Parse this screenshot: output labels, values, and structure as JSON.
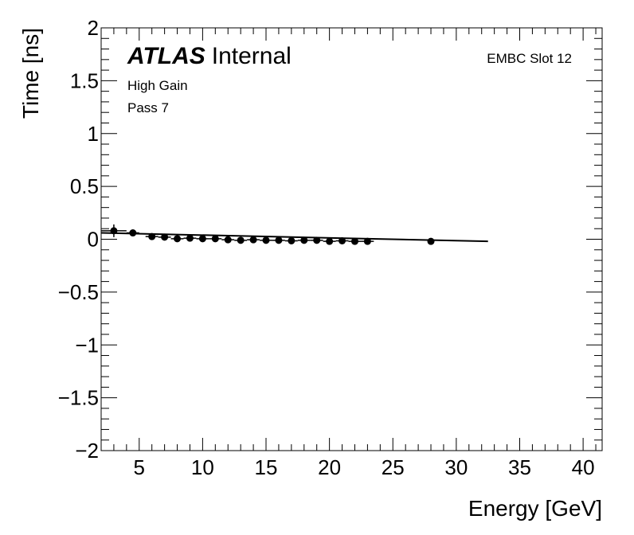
{
  "chart_data": {
    "type": "scatter",
    "xlabel": "Energy [GeV]",
    "ylabel": "Time [ns]",
    "xlim": [
      2,
      41.5
    ],
    "ylim": [
      -2,
      2
    ],
    "x_ticks": [
      5,
      10,
      15,
      20,
      25,
      30,
      35,
      40
    ],
    "x_tick_labels": [
      "5",
      "10",
      "15",
      "20",
      "25",
      "30",
      "35",
      "40"
    ],
    "y_ticks": [
      -2,
      -1.5,
      -1,
      -0.5,
      0,
      0.5,
      1,
      1.5,
      2
    ],
    "y_tick_labels": [
      "−2",
      "−1.5",
      "−1",
      "−0.5",
      "0",
      "0.5",
      "1",
      "1.5",
      "2"
    ],
    "grid": false,
    "annotations": {
      "atlas": "ATLAS",
      "internal": "Internal",
      "gain": "High Gain",
      "pass": "Pass 7",
      "slot": "EMBC Slot 12"
    },
    "points": [
      {
        "x": 3.0,
        "y": 0.08,
        "xerr": 1.0,
        "yerr": 0.06
      },
      {
        "x": 4.5,
        "y": 0.06,
        "xerr": 0.5,
        "yerr": 0.02
      },
      {
        "x": 6.0,
        "y": 0.025,
        "xerr": 0.5,
        "yerr": 0.02
      },
      {
        "x": 7.0,
        "y": 0.02,
        "xerr": 0.5,
        "yerr": 0.02
      },
      {
        "x": 8.0,
        "y": 0.005,
        "xerr": 0.5,
        "yerr": 0.015
      },
      {
        "x": 9.0,
        "y": 0.01,
        "xerr": 0.5,
        "yerr": 0.015
      },
      {
        "x": 10.0,
        "y": 0.005,
        "xerr": 0.5,
        "yerr": 0.015
      },
      {
        "x": 11.0,
        "y": 0.005,
        "xerr": 0.5,
        "yerr": 0.015
      },
      {
        "x": 12.0,
        "y": -0.005,
        "xerr": 0.5,
        "yerr": 0.015
      },
      {
        "x": 13.0,
        "y": -0.01,
        "xerr": 0.5,
        "yerr": 0.015
      },
      {
        "x": 14.0,
        "y": -0.005,
        "xerr": 0.5,
        "yerr": 0.015
      },
      {
        "x": 15.0,
        "y": -0.01,
        "xerr": 0.5,
        "yerr": 0.015
      },
      {
        "x": 16.0,
        "y": -0.01,
        "xerr": 0.5,
        "yerr": 0.015
      },
      {
        "x": 17.0,
        "y": -0.015,
        "xerr": 0.5,
        "yerr": 0.015
      },
      {
        "x": 18.0,
        "y": -0.01,
        "xerr": 0.5,
        "yerr": 0.015
      },
      {
        "x": 19.0,
        "y": -0.01,
        "xerr": 0.5,
        "yerr": 0.015
      },
      {
        "x": 20.0,
        "y": -0.02,
        "xerr": 0.5,
        "yerr": 0.015
      },
      {
        "x": 21.0,
        "y": -0.015,
        "xerr": 0.5,
        "yerr": 0.015
      },
      {
        "x": 22.0,
        "y": -0.02,
        "xerr": 0.5,
        "yerr": 0.015
      },
      {
        "x": 23.0,
        "y": -0.02,
        "xerr": 0.5,
        "yerr": 0.015
      },
      {
        "x": 28.0,
        "y": -0.02,
        "xerr": 0.0,
        "yerr": 0.0
      }
    ],
    "fit_line": {
      "x": [
        2.0,
        32.5
      ],
      "y": [
        0.06,
        -0.02
      ]
    }
  }
}
